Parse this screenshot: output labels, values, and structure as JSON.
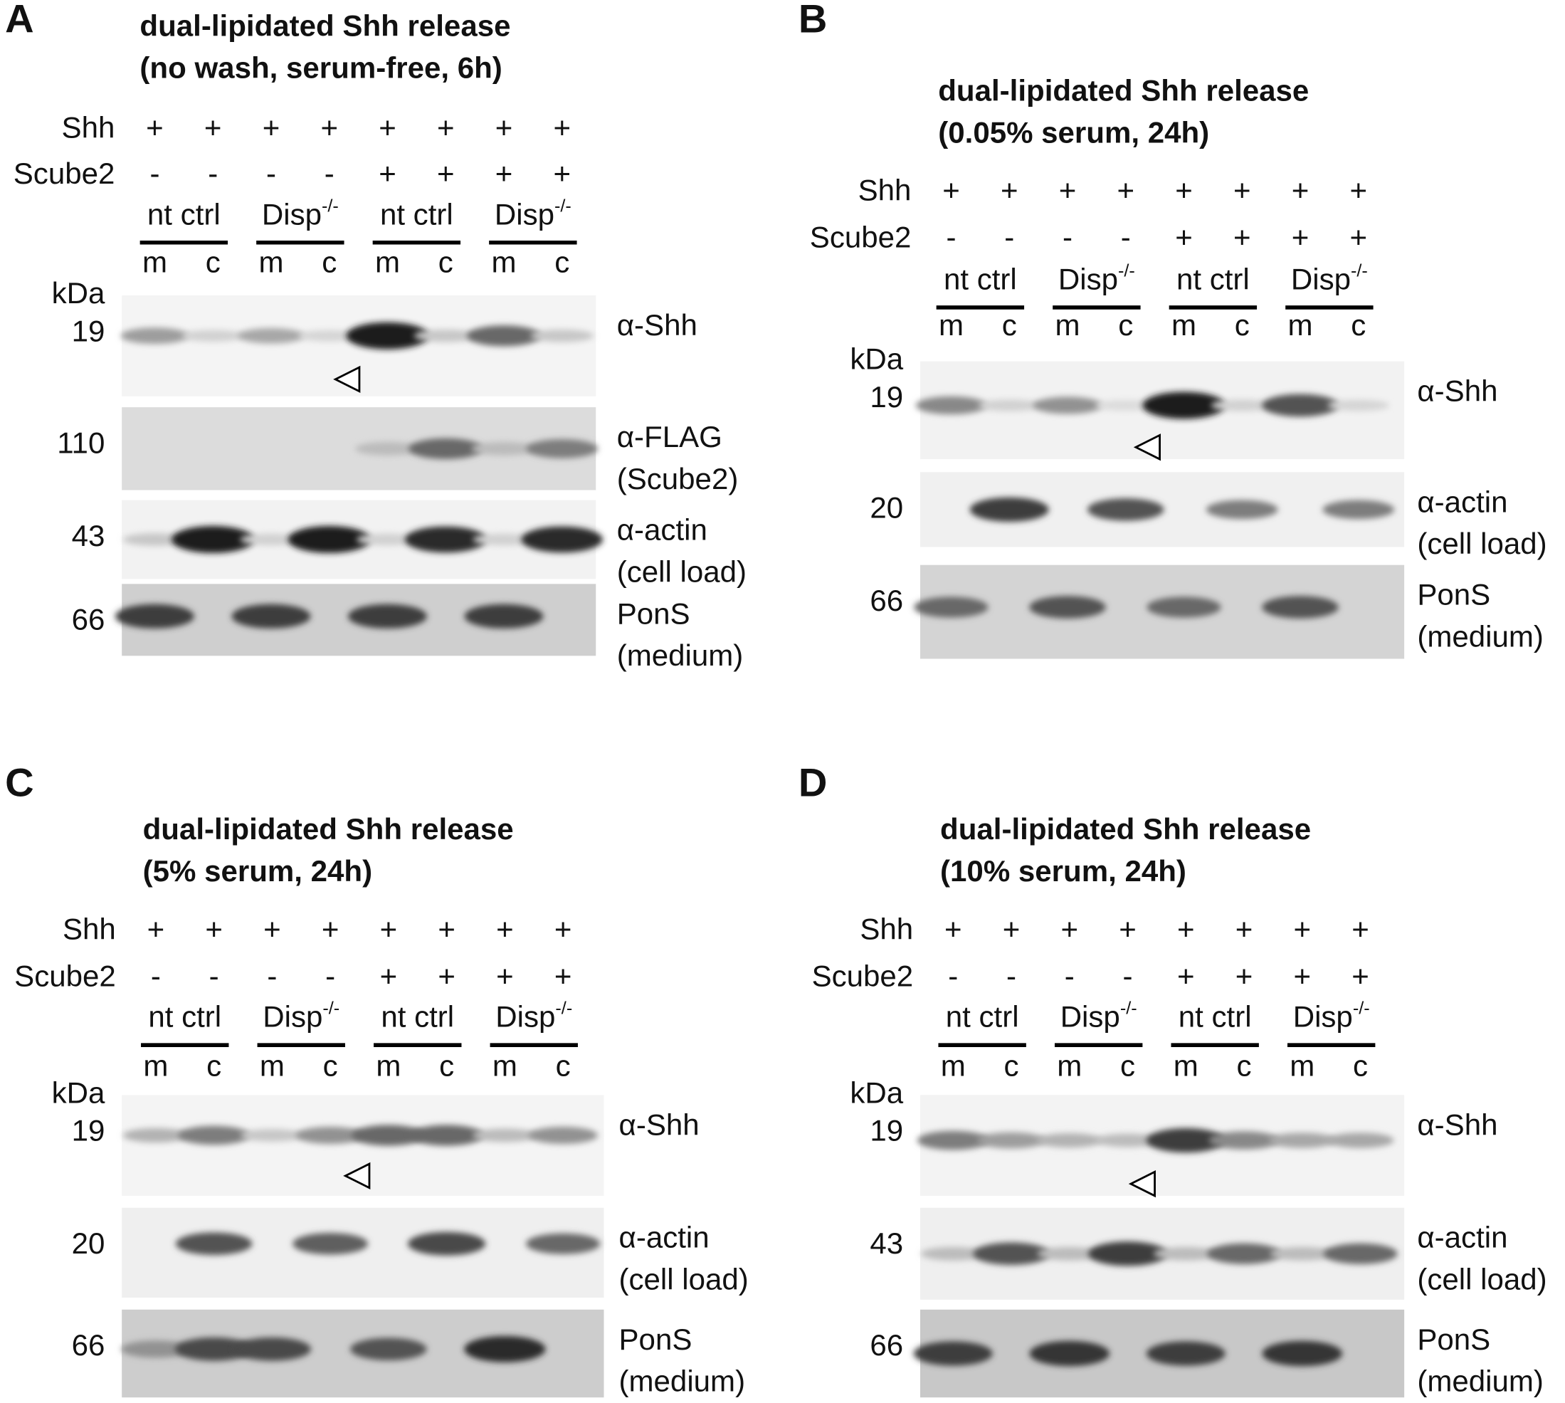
{
  "panels": [
    {
      "letter": "A",
      "title": [
        "dual-lipidated Shh release",
        "(no wash, serum-free, 6h)"
      ],
      "conditions": [
        {
          "label": "Shh",
          "signs": [
            "+",
            "+",
            "+",
            "+",
            "+",
            "+",
            "+",
            "+"
          ]
        },
        {
          "label": "Scube2",
          "signs": [
            "-",
            "-",
            "-",
            "-",
            "+",
            "+",
            "+",
            "+"
          ]
        }
      ],
      "groups": [
        {
          "text": "nt ctrl"
        },
        {
          "text": "Disp",
          "sup": "-/-"
        },
        {
          "text": "nt ctrl"
        },
        {
          "text": "Disp",
          "sup": "-/-"
        }
      ],
      "fractions": [
        "m",
        "c",
        "m",
        "c",
        "m",
        "c",
        "m",
        "c"
      ],
      "unit": "kDa",
      "blots": [
        {
          "marker": "19",
          "label": [
            "α-Shh"
          ]
        },
        {
          "marker": "110",
          "label": [
            "α-FLAG",
            "(Scube2)"
          ]
        },
        {
          "marker": "43",
          "label": [
            "α-actin",
            "(cell load)"
          ]
        },
        {
          "marker": "66",
          "label": [
            "PonS",
            "(medium)"
          ]
        }
      ]
    },
    {
      "letter": "B",
      "title": [
        "dual-lipidated Shh release",
        "(0.05% serum, 24h)"
      ],
      "conditions": [
        {
          "label": "Shh",
          "signs": [
            "+",
            "+",
            "+",
            "+",
            "+",
            "+",
            "+",
            "+"
          ]
        },
        {
          "label": "Scube2",
          "signs": [
            "-",
            "-",
            "-",
            "-",
            "+",
            "+",
            "+",
            "+"
          ]
        }
      ],
      "groups": [
        {
          "text": "nt ctrl"
        },
        {
          "text": "Disp",
          "sup": "-/-"
        },
        {
          "text": "nt ctrl"
        },
        {
          "text": "Disp",
          "sup": "-/-"
        }
      ],
      "fractions": [
        "m",
        "c",
        "m",
        "c",
        "m",
        "c",
        "m",
        "c"
      ],
      "unit": "kDa",
      "blots": [
        {
          "marker": "19",
          "label": [
            "α-Shh"
          ]
        },
        {
          "marker": "20",
          "label": [
            "α-actin",
            "(cell load)"
          ]
        },
        {
          "marker": "66",
          "label": [
            "PonS",
            "(medium)"
          ]
        }
      ]
    },
    {
      "letter": "C",
      "title": [
        "dual-lipidated Shh release",
        "(5% serum, 24h)"
      ],
      "conditions": [
        {
          "label": "Shh",
          "signs": [
            "+",
            "+",
            "+",
            "+",
            "+",
            "+",
            "+",
            "+"
          ]
        },
        {
          "label": "Scube2",
          "signs": [
            "-",
            "-",
            "-",
            "-",
            "+",
            "+",
            "+",
            "+"
          ]
        }
      ],
      "groups": [
        {
          "text": "nt ctrl"
        },
        {
          "text": "Disp",
          "sup": "-/-"
        },
        {
          "text": "nt ctrl"
        },
        {
          "text": "Disp",
          "sup": "-/-"
        }
      ],
      "fractions": [
        "m",
        "c",
        "m",
        "c",
        "m",
        "c",
        "m",
        "c"
      ],
      "unit": "kDa",
      "blots": [
        {
          "marker": "19",
          "label": [
            "α-Shh"
          ]
        },
        {
          "marker": "20",
          "label": [
            "α-actin",
            "(cell load)"
          ]
        },
        {
          "marker": "66",
          "label": [
            "PonS",
            "(medium)"
          ]
        }
      ]
    },
    {
      "letter": "D",
      "title": [
        "dual-lipidated Shh release",
        "(10% serum, 24h)"
      ],
      "conditions": [
        {
          "label": "Shh",
          "signs": [
            "+",
            "+",
            "+",
            "+",
            "+",
            "+",
            "+",
            "+"
          ]
        },
        {
          "label": "Scube2",
          "signs": [
            "-",
            "-",
            "-",
            "-",
            "+",
            "+",
            "+",
            "+"
          ]
        }
      ],
      "groups": [
        {
          "text": "nt ctrl"
        },
        {
          "text": "Disp",
          "sup": "-/-"
        },
        {
          "text": "nt ctrl"
        },
        {
          "text": "Disp",
          "sup": "-/-"
        }
      ],
      "fractions": [
        "m",
        "c",
        "m",
        "c",
        "m",
        "c",
        "m",
        "c"
      ],
      "unit": "kDa",
      "blots": [
        {
          "marker": "19",
          "label": [
            "α-Shh"
          ]
        },
        {
          "marker": "43",
          "label": [
            "α-actin",
            "(cell load)"
          ]
        },
        {
          "marker": "66",
          "label": [
            "PonS",
            "(medium)"
          ]
        }
      ]
    }
  ]
}
